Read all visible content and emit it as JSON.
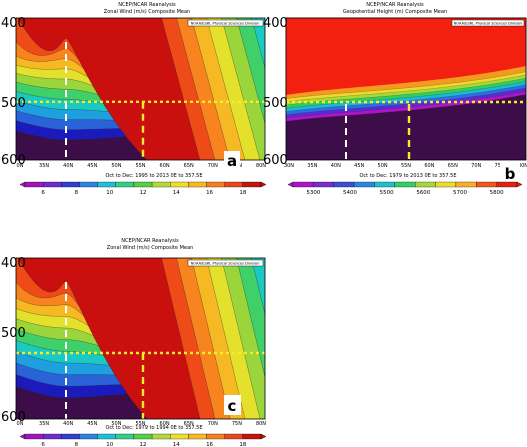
{
  "figure": {
    "panels": [
      {
        "panel_label": "a",
        "header": [
          "NCEP/NCAR Reanalysis",
          "Zonal Wind (m/s) Composite Mean"
        ],
        "noaa_label": "NOAA/ESRL Physical Sciences Division",
        "subtitle": "Oct to Dec: 1995 to 2013 0E to 357.5E",
        "y_ticks": [
          "400",
          "500",
          "600"
        ],
        "x_ticks": [
          "0N",
          "35N",
          "40N",
          "45N",
          "50N",
          "55N",
          "60N",
          "65N",
          "70N",
          "75N",
          "80N"
        ],
        "colorbar_ticks": [
          "6",
          "8",
          "10",
          "12",
          "14",
          "16",
          "18"
        ]
      },
      {
        "panel_label": "b",
        "header": [
          "NCEP/NCAR Reanalysis",
          "Geopotential Height (m) Composite Mean"
        ],
        "noaa_label": "NOAA/ESRL Physical Sciences Division",
        "subtitle": "Oct to Dec: 1979 to 2013 0E to 357.5E",
        "y_ticks": [
          "400",
          "500",
          "600"
        ],
        "x_ticks": [
          "30N",
          "35N",
          "40N",
          "45N",
          "50N",
          "55N",
          "60N",
          "65N",
          "70N",
          "75N",
          "80N"
        ],
        "colorbar_ticks": [
          "5300",
          "5400",
          "5500",
          "5600",
          "5700",
          "5800"
        ]
      },
      {
        "panel_label": "c",
        "header": [
          "NCEP/NCAR Reanalysis",
          "Zonal Wind (m/s) Composite Mean"
        ],
        "noaa_label": "NOAA/ESRL Physical Sciences Division",
        "subtitle": "Oct to Dec: 1979 to 1994 0E to 357.5E",
        "y_ticks": [
          "400",
          "500",
          "600"
        ],
        "x_ticks": [
          "0N",
          "35N",
          "40N",
          "45N",
          "50N",
          "55N",
          "60N",
          "65N",
          "70N",
          "75N",
          "80N"
        ],
        "colorbar_ticks": [
          "6",
          "8",
          "10",
          "12",
          "14",
          "16",
          "18"
        ]
      }
    ]
  },
  "colors": {
    "wind_palette": [
      "#1b1bbd",
      "#2a62d8",
      "#1e9fe0",
      "#19c9c2",
      "#3fd06a",
      "#9ad53c",
      "#e3e12c",
      "#f7b923",
      "#f7841e",
      "#ee4b18",
      "#c9100e"
    ],
    "wind_background": "#3c0d49",
    "height_low": "#3c0d49",
    "height_high": "#f3200f",
    "height_bands": [
      "#b014c8",
      "#5a2cd0",
      "#2f6ee0",
      "#1cb8d8",
      "#2fcf5a",
      "#a7d83a",
      "#ecd92a",
      "#f49a20"
    ],
    "line_500hPa": "#f6ec2a",
    "line_40N": "#ffffff",
    "line_55N": "#f6ec2a"
  },
  "chart_data": [
    {
      "type": "heatmap",
      "title": "Zonal Wind (m/s) Composite Mean",
      "xlabel": "",
      "ylabel": "",
      "x_ticks": [
        "0N",
        "35N",
        "40N",
        "45N",
        "50N",
        "55N",
        "60N",
        "65N",
        "70N",
        "75N",
        "80N"
      ],
      "y_ticks": [
        400,
        500,
        600
      ],
      "colorbar_ticks": [
        6,
        8,
        10,
        12,
        14,
        16,
        18
      ],
      "jet_core_latitude": 40,
      "reference_level_hPa": 500,
      "marker_latitudes": [
        40,
        55
      ]
    },
    {
      "type": "heatmap",
      "title": "Geopotential Height (m) Composite Mean",
      "xlabel": "",
      "ylabel": "",
      "x_ticks": [
        "30N",
        "35N",
        "40N",
        "45N",
        "50N",
        "55N",
        "60N",
        "65N",
        "70N",
        "75N",
        "80N"
      ],
      "y_ticks": [
        400,
        500,
        600
      ],
      "colorbar_ticks": [
        5300,
        5400,
        5500,
        5600,
        5700,
        5800
      ],
      "reference_level_hPa": 500,
      "marker_latitudes": [
        42,
        55
      ]
    },
    {
      "type": "heatmap",
      "title": "Zonal Wind (m/s) Composite Mean",
      "xlabel": "",
      "ylabel": "",
      "x_ticks": [
        "0N",
        "35N",
        "40N",
        "45N",
        "50N",
        "55N",
        "60N",
        "65N",
        "70N",
        "75N",
        "80N"
      ],
      "y_ticks": [
        400,
        500,
        600
      ],
      "colorbar_ticks": [
        6,
        8,
        10,
        12,
        14,
        16,
        18
      ],
      "jet_core_latitude": 40,
      "reference_level_hPa": 500,
      "marker_latitudes": [
        40,
        55
      ]
    }
  ]
}
